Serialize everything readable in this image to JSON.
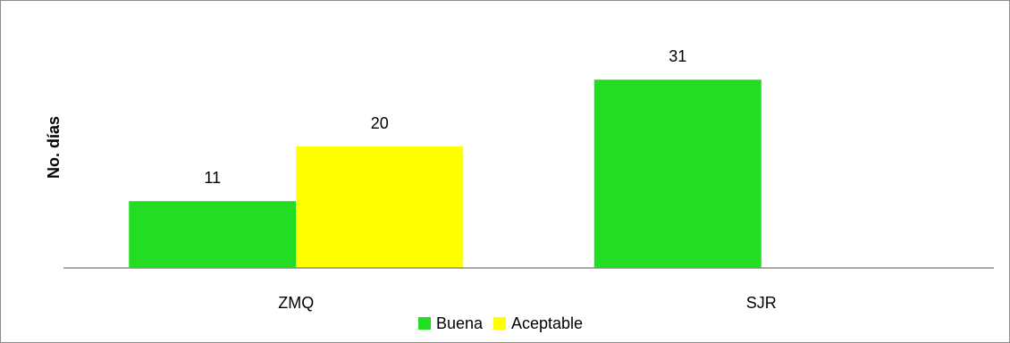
{
  "chart_data": {
    "type": "bar",
    "title": "",
    "xlabel": "",
    "ylabel": "No. días",
    "categories": [
      "ZMQ",
      "SJR"
    ],
    "series": [
      {
        "name": "Buena",
        "values": [
          11,
          31
        ],
        "color": "#22DD22"
      },
      {
        "name": "Aceptable",
        "values": [
          20,
          0
        ],
        "color": "#FFFF00"
      }
    ],
    "data_labels": [
      [
        "11",
        "31"
      ],
      [
        "20",
        ""
      ]
    ],
    "ylim": [
      0,
      31
    ],
    "grid": false,
    "legend_position": "bottom"
  }
}
